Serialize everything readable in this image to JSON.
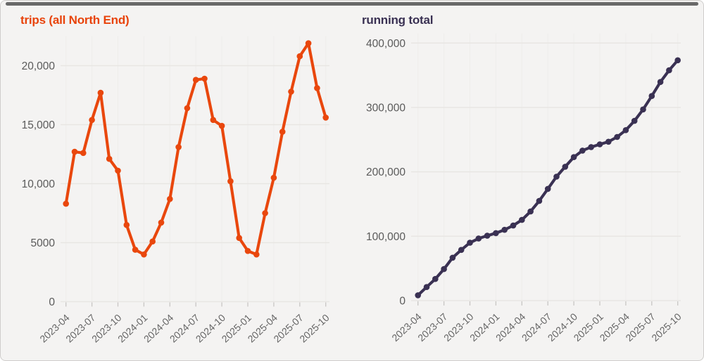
{
  "frame": {
    "background": "#f4f3f2",
    "border_color": "#cfcdcb",
    "top_bar_color": "#696969"
  },
  "axis_colors": {
    "y_tick_label": "#5a5a5a",
    "x_tick_label": "#666666",
    "gridline": "#e8e6e3",
    "vertical_gridline": "#eeedeb",
    "tick_mark": "#c8c6c4"
  },
  "chart_data": [
    {
      "type": "line",
      "title": "trips (all North End)",
      "title_color": "#e8430b",
      "line_color": "#e9470d",
      "marker": "circle",
      "grid": true,
      "legend": "none",
      "x": [
        "2023-04",
        "2023-05",
        "2023-06",
        "2023-07",
        "2023-08",
        "2023-09",
        "2023-10",
        "2023-11",
        "2023-12",
        "2024-01",
        "2024-02",
        "2024-03",
        "2024-04",
        "2024-05",
        "2024-06",
        "2024-07",
        "2024-08",
        "2024-09",
        "2024-10",
        "2024-11",
        "2024-12",
        "2025-01",
        "2025-02",
        "2025-03",
        "2025-04",
        "2025-05",
        "2025-06",
        "2025-07",
        "2025-08",
        "2025-09",
        "2025-10"
      ],
      "values": [
        8300,
        12700,
        12600,
        15400,
        17700,
        12100,
        11100,
        6500,
        4400,
        4000,
        5100,
        6700,
        8700,
        13100,
        16400,
        18800,
        18900,
        15400,
        14900,
        10200,
        5400,
        4300,
        4000,
        7500,
        10500,
        14400,
        17800,
        20800,
        21900,
        18100,
        15600
      ],
      "x_tick_labels": [
        "2023-04",
        "2023-07",
        "2023-10",
        "2024-01",
        "2024-04",
        "2024-07",
        "2024-10",
        "2025-01",
        "2025-04",
        "2025-07",
        "2025-10"
      ],
      "y_ticks": [
        {
          "value": 0,
          "label": "0"
        },
        {
          "value": 5000,
          "label": "5000"
        },
        {
          "value": 10000,
          "label": "10,000"
        },
        {
          "value": 15000,
          "label": "15,000"
        },
        {
          "value": 20000,
          "label": "20,000"
        }
      ],
      "ylim": [
        0,
        22500
      ]
    },
    {
      "type": "line",
      "title": "running total",
      "title_color": "#3a3153",
      "line_color": "#3a3153",
      "marker": "circle",
      "grid": true,
      "legend": "none",
      "x": [
        "2023-04",
        "2023-05",
        "2023-06",
        "2023-07",
        "2023-08",
        "2023-09",
        "2023-10",
        "2023-11",
        "2023-12",
        "2024-01",
        "2024-02",
        "2024-03",
        "2024-04",
        "2024-05",
        "2024-06",
        "2024-07",
        "2024-08",
        "2024-09",
        "2024-10",
        "2024-11",
        "2024-12",
        "2025-01",
        "2025-02",
        "2025-03",
        "2025-04",
        "2025-05",
        "2025-06",
        "2025-07",
        "2025-08",
        "2025-09",
        "2025-10"
      ],
      "values": [
        8300,
        21000,
        33600,
        49000,
        66700,
        78800,
        89900,
        96400,
        100800,
        104800,
        109900,
        116600,
        125300,
        138400,
        154800,
        173600,
        192500,
        207900,
        222800,
        233000,
        238400,
        242700,
        246700,
        254200,
        264700,
        279100,
        296900,
        317700,
        339600,
        357700,
        373300
      ],
      "x_tick_labels": [
        "2023-04",
        "2023-07",
        "2023-10",
        "2024-01",
        "2024-04",
        "2024-07",
        "2024-10",
        "2025-01",
        "2025-04",
        "2025-07",
        "2025-10"
      ],
      "y_ticks": [
        {
          "value": 0,
          "label": "0"
        },
        {
          "value": 100000,
          "label": "100,000"
        },
        {
          "value": 200000,
          "label": "200,000"
        },
        {
          "value": 300000,
          "label": "300,000"
        },
        {
          "value": 400000,
          "label": "400,000"
        }
      ],
      "ylim": [
        0,
        415000
      ]
    }
  ]
}
